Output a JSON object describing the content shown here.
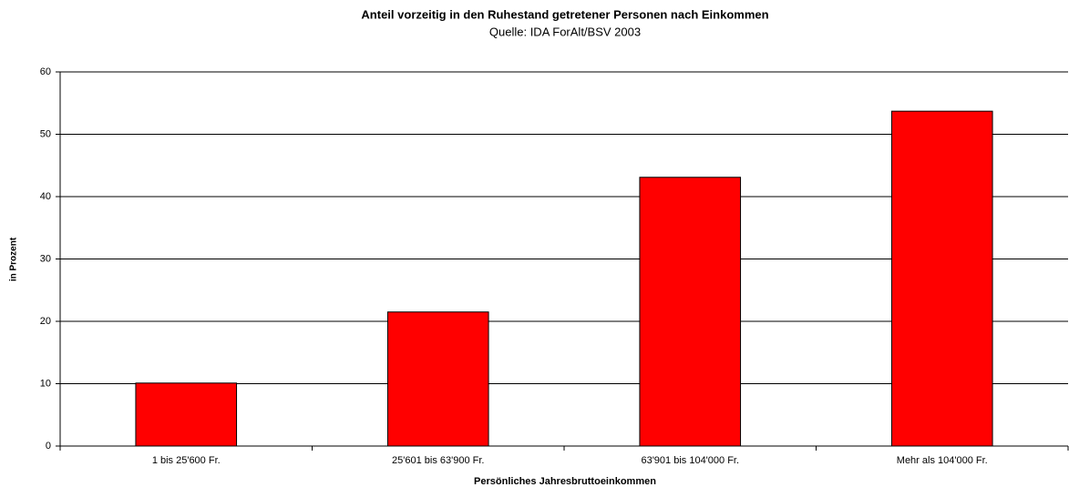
{
  "chart_data": {
    "type": "bar",
    "title": "Anteil vorzeitig in den Ruhestand getretener Personen nach Einkommen",
    "subtitle": "Quelle: IDA ForAlt/BSV 2003",
    "x_label": "Persönliches Jahresbruttoeinkommen",
    "y_label": "in Prozent",
    "categories": [
      "1 bis 25'600 Fr.",
      "25'601 bis 63'900 Fr.",
      "63'901 bis 104'000 Fr.",
      "Mehr als 104'000 Fr."
    ],
    "values": [
      10.1,
      21.5,
      43.1,
      53.7
    ],
    "color": "#ff0000",
    "ylim": [
      0,
      60
    ],
    "yticks": [
      0,
      10,
      20,
      30,
      40,
      50,
      60
    ],
    "grid": true
  }
}
